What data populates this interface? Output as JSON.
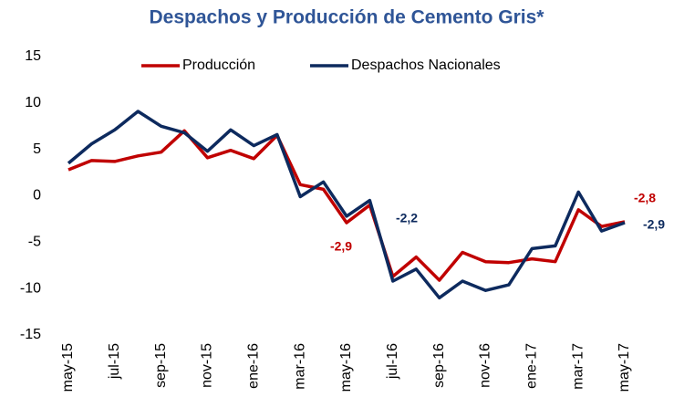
{
  "chart_data": {
    "type": "line",
    "title": "Despachos y Producción de Cemento Gris*",
    "categories": [
      "may-15",
      null,
      "jul-15",
      null,
      "sep-15",
      null,
      "nov-15",
      null,
      "ene-16",
      null,
      "mar-16",
      null,
      "may-16",
      null,
      "jul-16",
      null,
      "sep-16",
      null,
      "nov-16",
      null,
      "ene-17",
      null,
      "mar-17",
      null,
      "may-17"
    ],
    "series": [
      {
        "name": "Producción",
        "color": "#c00000",
        "values": [
          2.8,
          3.8,
          3.7,
          4.3,
          4.7,
          7.0,
          4.1,
          4.9,
          4.0,
          6.5,
          1.2,
          0.7,
          -2.9,
          -1.0,
          -8.7,
          -6.6,
          -9.1,
          -6.1,
          -7.1,
          -7.2,
          -6.8,
          -7.1,
          -1.5,
          -3.3,
          -2.8
        ],
        "value_labels": [
          null,
          null,
          null,
          null,
          null,
          null,
          null,
          null,
          null,
          null,
          null,
          null,
          "-2,9",
          null,
          null,
          null,
          null,
          null,
          null,
          null,
          null,
          null,
          null,
          null,
          "-2,8"
        ]
      },
      {
        "name": "Despachos Nacionales",
        "color": "#0d2a5e",
        "values": [
          3.5,
          5.6,
          7.1,
          9.1,
          7.5,
          6.8,
          4.8,
          7.1,
          5.4,
          6.6,
          -0.1,
          1.5,
          -2.2,
          -0.5,
          -9.2,
          -7.9,
          -11.0,
          -9.2,
          -10.2,
          -9.6,
          -5.7,
          -5.4,
          0.4,
          -3.8,
          -2.9
        ],
        "value_labels": [
          null,
          null,
          null,
          null,
          null,
          null,
          null,
          null,
          null,
          null,
          null,
          null,
          "-2,2",
          null,
          null,
          null,
          null,
          null,
          null,
          null,
          null,
          null,
          null,
          null,
          "-2,9"
        ]
      }
    ],
    "ylim": [
      -15,
      15
    ],
    "yticks": [
      -15,
      -10,
      -5,
      0,
      5,
      10,
      15
    ],
    "legend": "top"
  }
}
